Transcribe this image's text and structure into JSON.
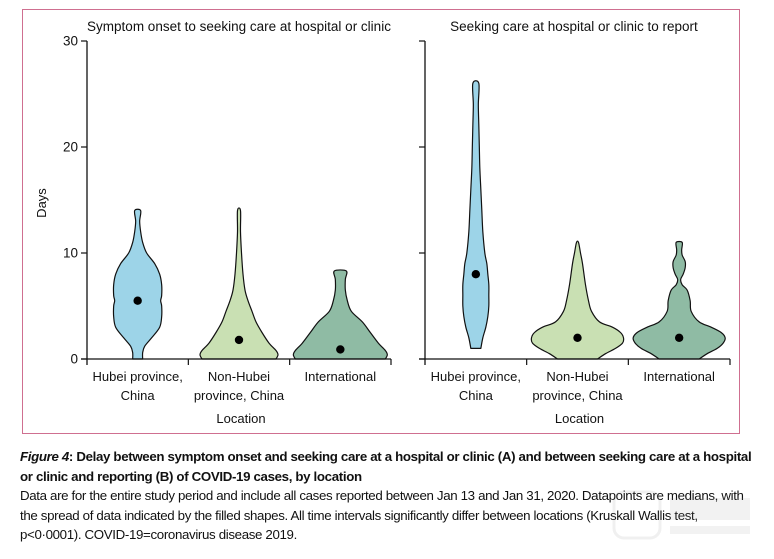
{
  "chart_data": [
    {
      "type": "violin",
      "panel": "A",
      "title": "Symptom onset to seeking care at hospital or clinic",
      "xlabel": "Location",
      "ylabel": "Days",
      "ylim": [
        0,
        30
      ],
      "yticks": [
        0,
        10,
        20,
        30
      ],
      "categories": [
        "Hubei province, China",
        "Non-Hubei province, China",
        "International"
      ],
      "category_lines": [
        [
          "Hubei province,",
          "China"
        ],
        [
          "Non-Hubei",
          "province, China"
        ],
        [
          "International"
        ]
      ],
      "medians": [
        5.5,
        1.8,
        0.9
      ],
      "ranges": [
        [
          0,
          14
        ],
        [
          0,
          14
        ],
        [
          0,
          8.3
        ]
      ],
      "colors": [
        "#9dd4e8",
        "#c9e0b3",
        "#8fbba4"
      ]
    },
    {
      "type": "violin",
      "panel": "B",
      "title": "Seeking care at hospital or clinic to report",
      "xlabel": "Location",
      "ylabel": "",
      "ylim": [
        0,
        30
      ],
      "yticks": [
        0,
        10,
        20,
        30
      ],
      "categories": [
        "Hubei province, China",
        "Non-Hubei province, China",
        "International"
      ],
      "category_lines": [
        [
          "Hubei province,",
          "China"
        ],
        [
          "Non-Hubei",
          "province, China"
        ],
        [
          "International"
        ]
      ],
      "medians": [
        8,
        2,
        2
      ],
      "ranges": [
        [
          1,
          26
        ],
        [
          0,
          11
        ],
        [
          0,
          11
        ]
      ],
      "colors": [
        "#9dd4e8",
        "#c9e0b3",
        "#8fbba4"
      ]
    }
  ],
  "caption": {
    "figure_label": "Figure 4",
    "title": ": Delay between symptom onset and seeking care at a hospital or clinic (A) and between seeking care at a hospital or clinic and reporting (B) of COVID-19 cases, by location",
    "body": "Data are for the entire study period and include all cases reported between Jan 13 and Jan 31, 2020. Datapoints are medians, with the spread of data indicated by the filled shapes. All time intervals significantly differ between locations (Kruskall Wallis test, p<0·0001). COVID-19=coronavirus disease 2019."
  },
  "colors": {
    "border": "#cf6f90",
    "hubei": "#9dd4e8",
    "non_hubei": "#c9e0b3",
    "international": "#8fbba4"
  }
}
